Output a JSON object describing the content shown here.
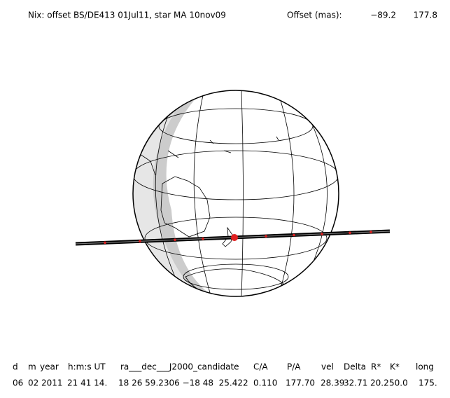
{
  "header": {
    "title": "Nix: offset BS/DE413 01Jul11, star MA 10nov09",
    "offset_label": "Offset (mas):",
    "offset_values": [
      "−89.2",
      "177.8"
    ]
  },
  "table": {
    "columns": [
      "d",
      "m",
      "year",
      "h:m:s UT",
      "ra___dec___J2000_candidate",
      "C/A",
      "P/A",
      "vel",
      "Delta",
      "R*",
      "K*",
      "long"
    ],
    "rows": [
      [
        "06",
        "02",
        "2011",
        "21 41 14.",
        "18 26 59.2306 −18 48  25.422",
        "0.110",
        "177.70",
        "28.39",
        "32.71",
        "20.2",
        "50.0",
        "175."
      ]
    ]
  }
}
